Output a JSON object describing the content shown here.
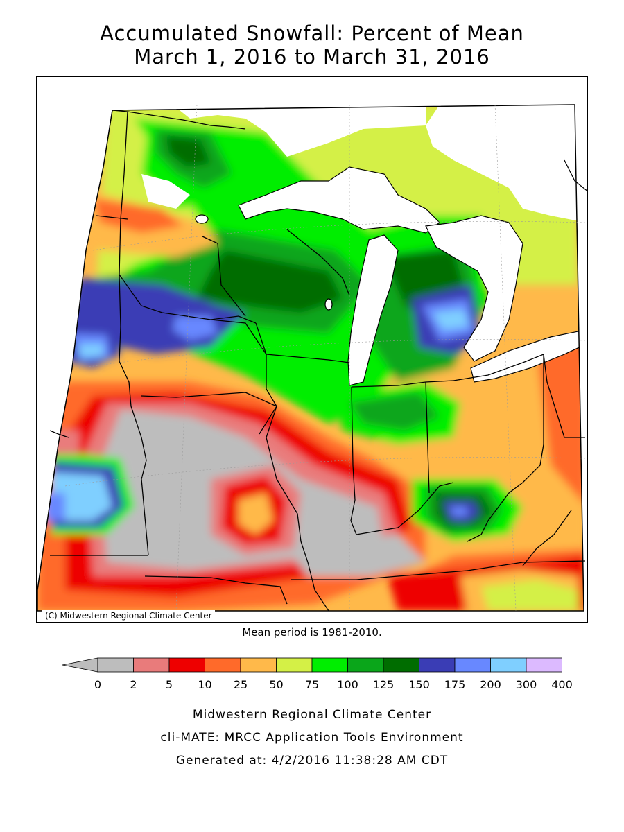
{
  "title": {
    "line1": "Accumulated Snowfall: Percent of Mean",
    "line2": "March 1, 2016 to March 31, 2016"
  },
  "map": {
    "credit": "(C) Midwestern Regional Climate Center",
    "note": "Mean period is 1981-2010."
  },
  "legend": {
    "labels": [
      "0",
      "2",
      "5",
      "10",
      "25",
      "50",
      "75",
      "100",
      "125",
      "150",
      "175",
      "200",
      "300",
      "400"
    ],
    "colors": [
      "#bdbdbd",
      "#e97b7b",
      "#ee0000",
      "#ff6a2a",
      "#ffb94a",
      "#d4f046",
      "#00ee00",
      "#0aa61a",
      "#006d00",
      "#3a3db5",
      "#6888ff",
      "#7fcfff",
      "#dcbaff"
    ],
    "below_min_color": "#bdbdbd"
  },
  "footer": {
    "line1": "Midwestern Regional Climate Center",
    "line2": "cli-MATE: MRCC Application Tools Environment",
    "line3": "Generated at: 4/2/2016 11:38:28 AM CDT"
  }
}
